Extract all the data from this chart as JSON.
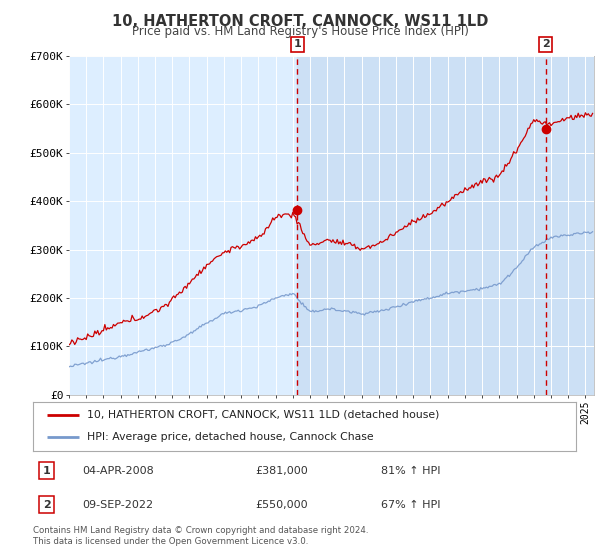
{
  "title": "10, HATHERTON CROFT, CANNOCK, WS11 1LD",
  "subtitle": "Price paid vs. HM Land Registry's House Price Index (HPI)",
  "legend_line1": "10, HATHERTON CROFT, CANNOCK, WS11 1LD (detached house)",
  "legend_line2": "HPI: Average price, detached house, Cannock Chase",
  "annotation1_label": "1",
  "annotation1_date": "04-APR-2008",
  "annotation1_price": "£381,000",
  "annotation1_hpi": "81% ↑ HPI",
  "annotation2_label": "2",
  "annotation2_date": "09-SEP-2022",
  "annotation2_price": "£550,000",
  "annotation2_hpi": "67% ↑ HPI",
  "footer": "Contains HM Land Registry data © Crown copyright and database right 2024.\nThis data is licensed under the Open Government Licence v3.0.",
  "red_color": "#cc0000",
  "blue_color": "#7799cc",
  "bg_color": "#ddeeff",
  "bg_highlight_color": "#cce0f5",
  "grid_color": "#ffffff",
  "dashed_line_color": "#cc0000",
  "ylim": [
    0,
    700000
  ],
  "yticks": [
    0,
    100000,
    200000,
    300000,
    400000,
    500000,
    600000,
    700000
  ],
  "ytick_labels": [
    "£0",
    "£100K",
    "£200K",
    "£300K",
    "£400K",
    "£500K",
    "£600K",
    "£700K"
  ],
  "sale1_x": 2008.27,
  "sale1_y": 381000,
  "sale2_x": 2022.69,
  "sale2_y": 550000,
  "xmin": 1995.0,
  "xmax": 2025.5,
  "blue_key_points": {
    "1995": 58000,
    "1996": 65000,
    "1997": 72000,
    "1998": 80000,
    "1999": 88000,
    "2000": 97000,
    "2001": 108000,
    "2002": 125000,
    "2003": 148000,
    "2004": 168000,
    "2005": 175000,
    "2006": 183000,
    "2007": 200000,
    "2008": 210000,
    "2009": 170000,
    "2010": 178000,
    "2011": 173000,
    "2012": 168000,
    "2013": 172000,
    "2014": 182000,
    "2015": 193000,
    "2016": 200000,
    "2017": 210000,
    "2018": 215000,
    "2019": 220000,
    "2020": 228000,
    "2021": 262000,
    "2022": 305000,
    "2023": 325000,
    "2024": 330000,
    "2025": 335000
  },
  "red_key_points": {
    "1995": 108000,
    "1996": 118000,
    "1997": 132000,
    "1998": 148000,
    "1999": 158000,
    "2000": 172000,
    "2001": 195000,
    "2002": 232000,
    "2003": 268000,
    "2004": 295000,
    "2005": 308000,
    "2006": 322000,
    "2007": 368000,
    "2008": 375000,
    "2009": 308000,
    "2010": 320000,
    "2011": 312000,
    "2012": 302000,
    "2013": 312000,
    "2014": 335000,
    "2015": 358000,
    "2016": 375000,
    "2017": 398000,
    "2018": 425000,
    "2019": 440000,
    "2020": 452000,
    "2021": 505000,
    "2022": 568000,
    "2023": 558000,
    "2024": 572000,
    "2025": 578000
  }
}
